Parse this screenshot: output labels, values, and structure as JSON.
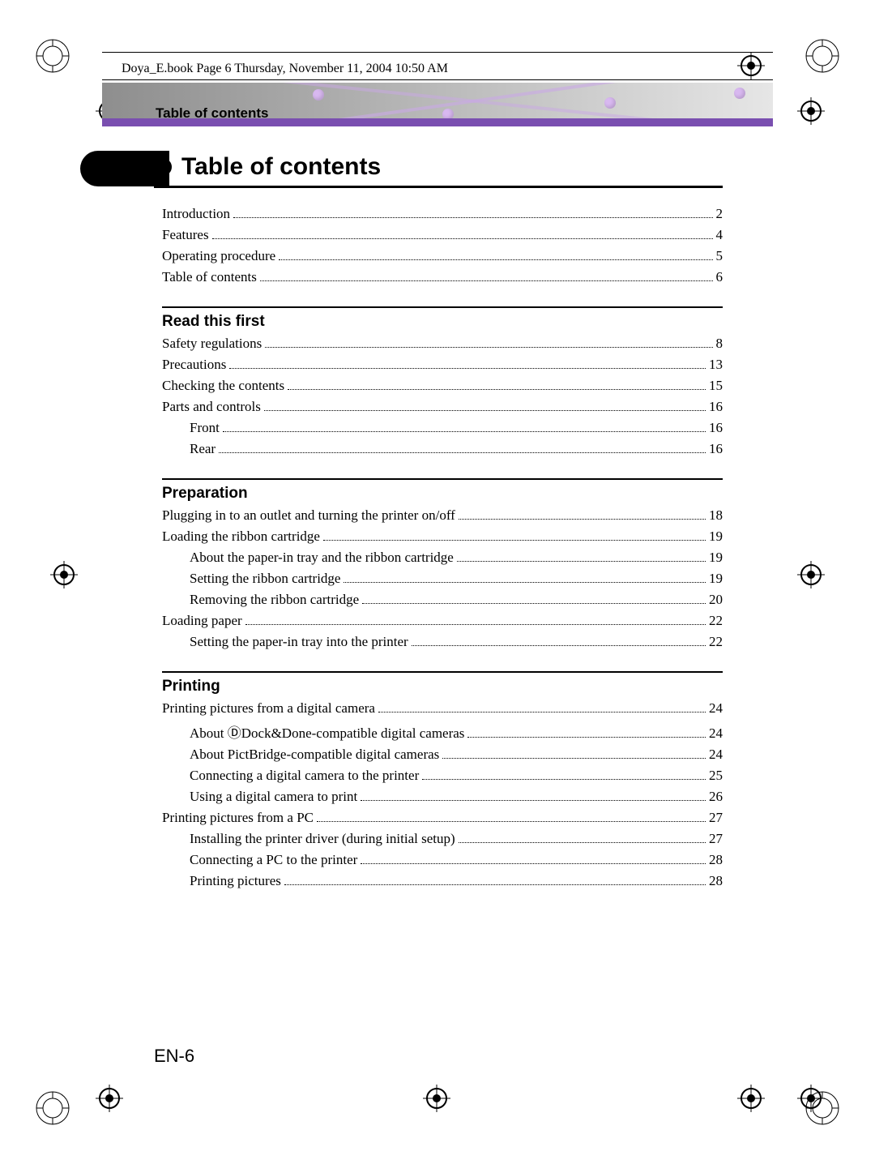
{
  "header_line": "Doya_E.book  Page 6  Thursday, November 11, 2004  10:50 AM",
  "band_label": "Table of contents",
  "title": "Table of contents",
  "page_number": "EN-6",
  "colors": {
    "band_gradient_from": "#8e8e8e",
    "band_gradient_mid": "#b5b5b5",
    "band_gradient_to": "#e6e6e6",
    "purple_bar": "#7a4fb0",
    "purple_dot": "#d8b8f0",
    "rule": "#000000",
    "text": "#000000"
  },
  "fonts": {
    "title_family": "Arial",
    "title_size_pt": 22,
    "section_family": "Arial",
    "section_size_pt": 14,
    "body_family": "Times New Roman",
    "body_size_pt": 13
  },
  "front_matter": [
    {
      "label": "Introduction",
      "page": "2"
    },
    {
      "label": "Features",
      "page": "4"
    },
    {
      "label": "Operating procedure",
      "page": "5"
    },
    {
      "label": "Table of contents",
      "page": "6"
    }
  ],
  "sections": [
    {
      "heading": "Read this first",
      "items": [
        {
          "label": "Safety regulations",
          "page": "8"
        },
        {
          "label": "Precautions",
          "page": "13"
        },
        {
          "label": "Checking the contents",
          "page": "15"
        },
        {
          "label": "Parts and controls",
          "page": "16"
        },
        {
          "label": "Front",
          "page": "16",
          "indent": 1
        },
        {
          "label": "Rear",
          "page": "16",
          "indent": 1
        }
      ]
    },
    {
      "heading": "Preparation",
      "items": [
        {
          "label": "Plugging in to an outlet and turning the printer on/off",
          "page": "18"
        },
        {
          "label": "Loading the ribbon cartridge",
          "page": "19"
        },
        {
          "label": "About the paper-in tray and the ribbon cartridge",
          "page": "19",
          "indent": 1
        },
        {
          "label": "Setting the ribbon cartridge",
          "page": "19",
          "indent": 1
        },
        {
          "label": "Removing the ribbon cartridge",
          "page": "20",
          "indent": 1
        },
        {
          "label": "Loading paper",
          "page": "22"
        },
        {
          "label": "Setting the paper-in tray into the printer",
          "page": "22",
          "indent": 1
        }
      ]
    },
    {
      "heading": "Printing",
      "items": [
        {
          "label": "Printing pictures from a digital camera",
          "page": "24"
        },
        {
          "label": "About ⒹDock&Done-compatible digital cameras",
          "page": "24",
          "indent": 1
        },
        {
          "label": "About PictBridge-compatible digital cameras",
          "page": "24",
          "indent": 1
        },
        {
          "label": "Connecting a digital camera to the printer",
          "page": "25",
          "indent": 1
        },
        {
          "label": "Using a digital camera to print",
          "page": "26",
          "indent": 1
        },
        {
          "label": "Printing pictures from a PC",
          "page": "27"
        },
        {
          "label": "Installing the printer driver (during initial setup)",
          "page": "27",
          "indent": 1
        },
        {
          "label": "Connecting a PC to the printer",
          "page": "28",
          "indent": 1
        },
        {
          "label": "Printing pictures",
          "page": "28",
          "indent": 1
        }
      ]
    }
  ]
}
